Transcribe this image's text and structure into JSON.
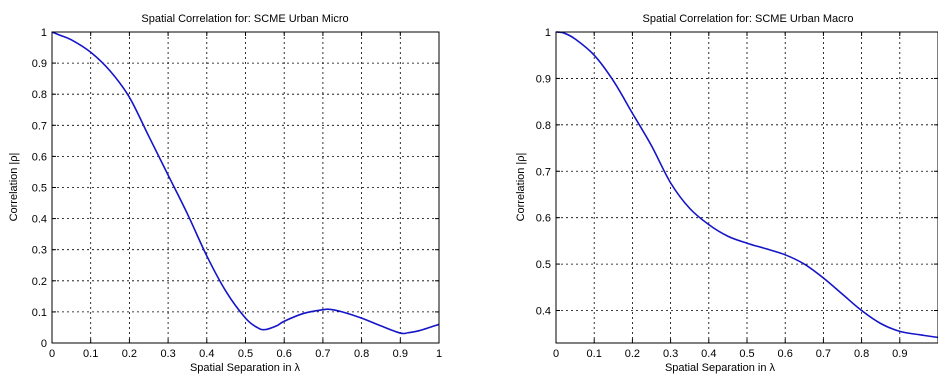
{
  "chart_data": [
    {
      "type": "line",
      "title": "Spatial Correlation for: SCME Urban Micro",
      "xlabel": "Spatial Separation in λ",
      "ylabel": "Correlation |ρ|",
      "xlim": [
        0,
        1
      ],
      "ylim": [
        0,
        1
      ],
      "xticks": [
        0,
        0.1,
        0.2,
        0.3,
        0.4,
        0.5,
        0.6,
        0.7,
        0.8,
        0.9,
        1
      ],
      "xtick_labels": [
        "0",
        "0.1",
        "0.2",
        "0.3",
        "0.4",
        "0.5",
        "0.6",
        "0.7",
        "0.8",
        "0.9",
        "1"
      ],
      "yticks": [
        0,
        0.1,
        0.2,
        0.3,
        0.4,
        0.5,
        0.6,
        0.7,
        0.8,
        0.9,
        1
      ],
      "ytick_labels": [
        "0",
        "0.1",
        "0.2",
        "0.3",
        "0.4",
        "0.5",
        "0.6",
        "0.7",
        "0.8",
        "0.9",
        "1"
      ],
      "grid": true,
      "color": "#1515c8",
      "series": [
        {
          "x": [
            0,
            0.02,
            0.05,
            0.1,
            0.15,
            0.2,
            0.25,
            0.3,
            0.35,
            0.4,
            0.45,
            0.5,
            0.53,
            0.55,
            0.58,
            0.6,
            0.65,
            0.7,
            0.72,
            0.75,
            0.8,
            0.85,
            0.9,
            0.92,
            0.95,
            1
          ],
          "y": [
            1.0,
            0.99,
            0.975,
            0.935,
            0.875,
            0.79,
            0.665,
            0.54,
            0.415,
            0.28,
            0.165,
            0.08,
            0.05,
            0.043,
            0.055,
            0.07,
            0.095,
            0.107,
            0.108,
            0.1,
            0.08,
            0.055,
            0.032,
            0.033,
            0.04,
            0.06
          ]
        }
      ]
    },
    {
      "type": "line",
      "title": "Spatial Correlation for: SCME Urban Macro",
      "xlabel": "Spatial Separation in λ",
      "ylabel": "Correlation |ρ|",
      "xlim": [
        0,
        1
      ],
      "ylim": [
        0.33,
        1
      ],
      "xticks": [
        0,
        0.1,
        0.2,
        0.3,
        0.4,
        0.5,
        0.6,
        0.7,
        0.8,
        0.9
      ],
      "xtick_labels": [
        "0",
        "0.1",
        "0.2",
        "0.3",
        "0.4",
        "0.5",
        "0.6",
        "0.7",
        "0.8",
        "0.9"
      ],
      "yticks": [
        0.4,
        0.5,
        0.6,
        0.7,
        0.8,
        0.9,
        1
      ],
      "ytick_labels": [
        "0.4",
        "0.5",
        "0.6",
        "0.7",
        "0.8",
        "0.9",
        "1"
      ],
      "grid": true,
      "color": "#1515c8",
      "series": [
        {
          "x": [
            0,
            0.02,
            0.05,
            0.1,
            0.15,
            0.2,
            0.25,
            0.3,
            0.35,
            0.4,
            0.45,
            0.5,
            0.55,
            0.6,
            0.65,
            0.7,
            0.75,
            0.8,
            0.85,
            0.9,
            0.95,
            1
          ],
          "y": [
            1.0,
            0.998,
            0.985,
            0.95,
            0.895,
            0.825,
            0.755,
            0.675,
            0.62,
            0.585,
            0.56,
            0.545,
            0.533,
            0.52,
            0.5,
            0.47,
            0.435,
            0.4,
            0.372,
            0.355,
            0.348,
            0.342
          ]
        }
      ]
    }
  ]
}
